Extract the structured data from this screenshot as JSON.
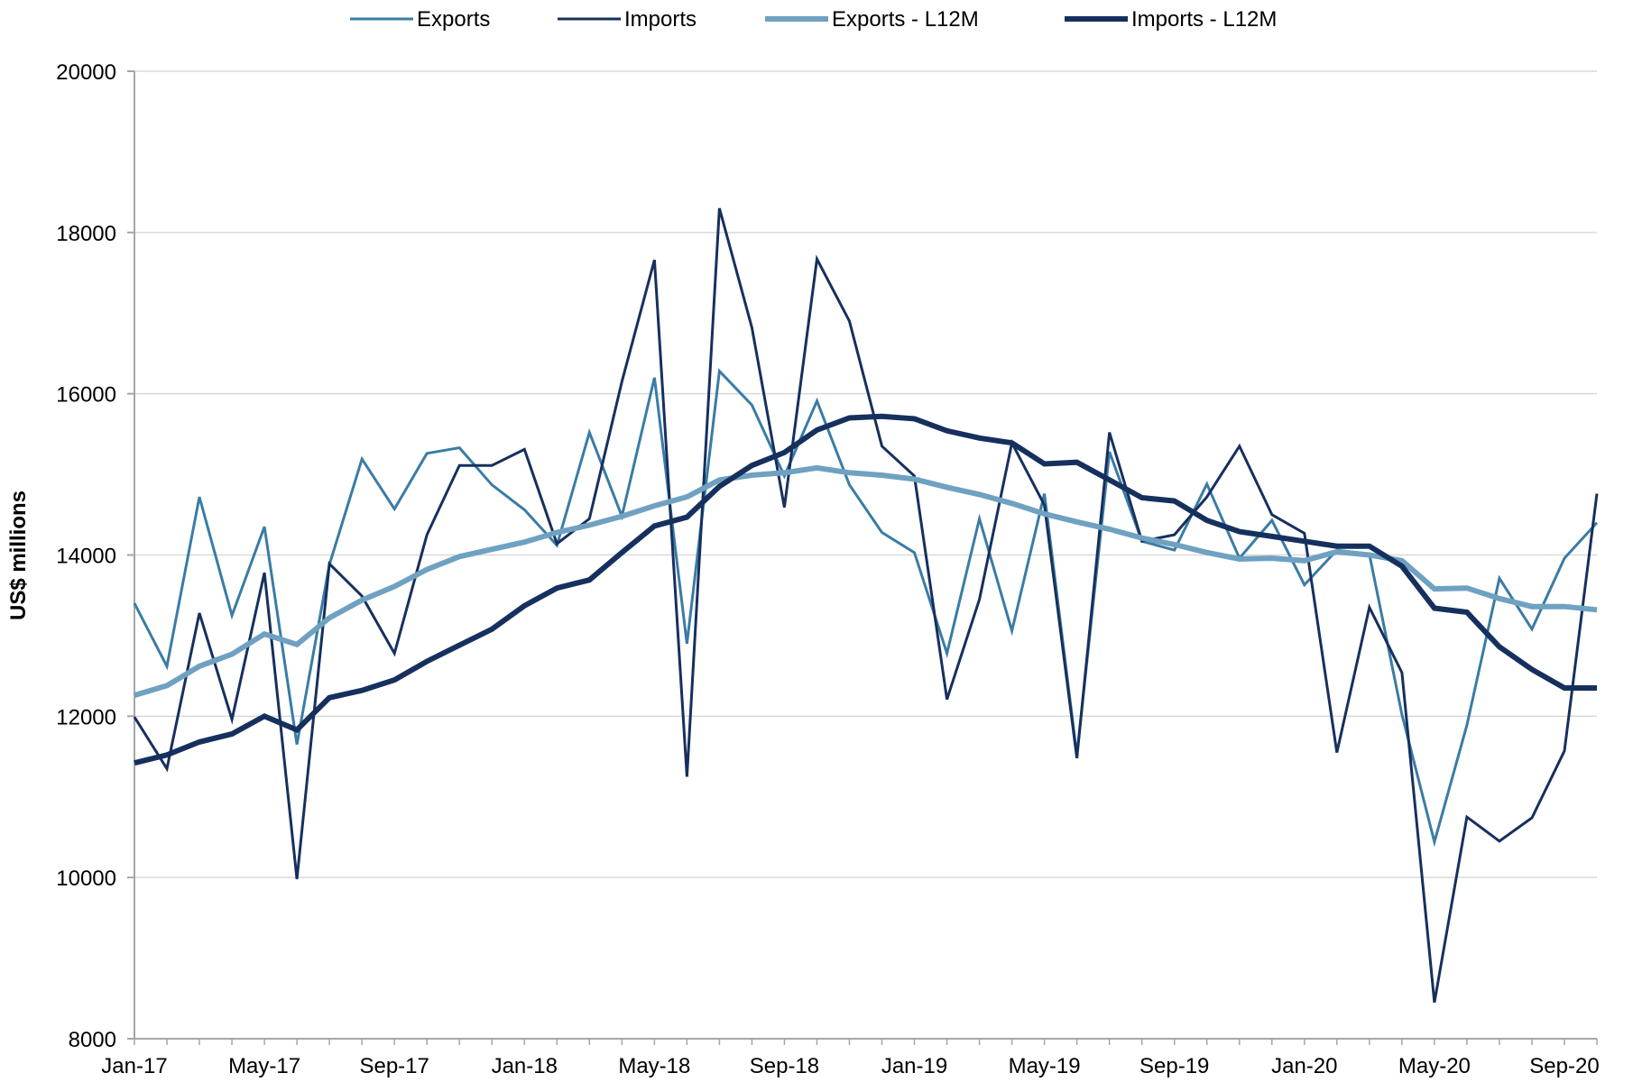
{
  "chart_data": {
    "type": "line",
    "ylabel": "US$ millions",
    "ylim": [
      8000,
      20000
    ],
    "yticks": [
      8000,
      10000,
      12000,
      14000,
      16000,
      18000,
      20000
    ],
    "xtick_labels": [
      "Jan-17",
      "May-17",
      "Sep-17",
      "Jan-18",
      "May-18",
      "Sep-18",
      "Jan-19",
      "May-19",
      "Sep-19",
      "Jan-20",
      "May-20",
      "Sep-20"
    ],
    "grid": "horizontal",
    "legend_position": "top",
    "x": [
      "Jan-17",
      "Feb-17",
      "Mar-17",
      "Apr-17",
      "May-17",
      "Jun-17",
      "Jul-17",
      "Aug-17",
      "Sep-17",
      "Oct-17",
      "Nov-17",
      "Dec-17",
      "Jan-18",
      "Feb-18",
      "Mar-18",
      "Apr-18",
      "May-18",
      "Jun-18",
      "Jul-18",
      "Aug-18",
      "Sep-18",
      "Oct-18",
      "Nov-18",
      "Dec-18",
      "Jan-19",
      "Feb-19",
      "Mar-19",
      "Apr-19",
      "May-19",
      "Jun-19",
      "Jul-19",
      "Aug-19",
      "Sep-19",
      "Oct-19",
      "Nov-19",
      "Dec-19",
      "Jan-20",
      "Feb-20",
      "Mar-20",
      "Apr-20",
      "May-20",
      "Jun-20",
      "Jul-20",
      "Aug-20",
      "Sep-20",
      "Oct-20"
    ],
    "series": [
      {
        "name": "Exports",
        "color": "#3a7ca5",
        "width": 3,
        "values": [
          13400,
          12620,
          14720,
          13250,
          14350,
          11650,
          13880,
          15190,
          14570,
          15260,
          15330,
          14870,
          14560,
          14120,
          15520,
          14480,
          16200,
          12900,
          16280,
          15860,
          14980,
          15910,
          14870,
          14280,
          14030,
          12780,
          14450,
          13060,
          14760,
          11520,
          15280,
          14170,
          14060,
          14880,
          13960,
          14430,
          13630,
          14060,
          14010,
          12020,
          10440,
          11890,
          13710,
          13080,
          13960,
          14400
        ]
      },
      {
        "name": "Imports",
        "color": "#16305e",
        "width": 3,
        "values": [
          11990,
          11350,
          13280,
          11960,
          13780,
          9980,
          13890,
          13490,
          12780,
          14250,
          15110,
          15110,
          15310,
          14140,
          14450,
          16150,
          17660,
          11250,
          18300,
          16820,
          14590,
          17670,
          16900,
          15350,
          14980,
          12210,
          13450,
          15390,
          14620,
          11480,
          15520,
          14170,
          14250,
          14720,
          15350,
          14500,
          14270,
          11550,
          13350,
          12540,
          8450,
          10750,
          10450,
          10740,
          11570,
          14760
        ]
      },
      {
        "name": "Exports - L12M",
        "color": "#6fa1c1",
        "width": 6,
        "values": [
          12260,
          12380,
          12620,
          12770,
          13020,
          12890,
          13220,
          13440,
          13610,
          13820,
          13980,
          14070,
          14160,
          14280,
          14370,
          14480,
          14610,
          14720,
          14930,
          14990,
          15020,
          15080,
          15020,
          14990,
          14940,
          14840,
          14750,
          14640,
          14510,
          14410,
          14320,
          14210,
          14130,
          14030,
          13950,
          13960,
          13930,
          14040,
          14000,
          13930,
          13580,
          13590,
          13460,
          13360,
          13360,
          13320
        ]
      },
      {
        "name": "Imports - L12M",
        "color": "#16305e",
        "width": 6,
        "values": [
          11420,
          11520,
          11680,
          11780,
          12000,
          11830,
          12230,
          12320,
          12450,
          12680,
          12880,
          13080,
          13370,
          13590,
          13690,
          14030,
          14360,
          14470,
          14850,
          15110,
          15270,
          15550,
          15700,
          15720,
          15690,
          15540,
          15450,
          15390,
          15130,
          15150,
          14930,
          14710,
          14670,
          14430,
          14290,
          14230,
          14170,
          14110,
          14110,
          13860,
          13340,
          13290,
          12860,
          12580,
          12350,
          12350
        ]
      }
    ]
  }
}
